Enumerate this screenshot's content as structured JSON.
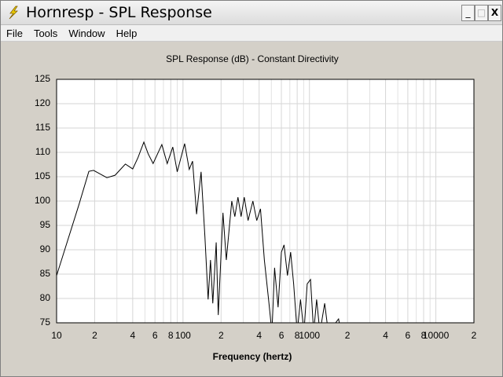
{
  "window": {
    "title": "Hornresp - SPL Response"
  },
  "menu": [
    "File",
    "Tools",
    "Window",
    "Help"
  ],
  "chart_data": {
    "type": "line",
    "title": "SPL Response (dB) - Constant Directivity",
    "xlabel": "Frequency (hertz)",
    "log_x": true,
    "grid": true,
    "color": "#000000",
    "xlim": [
      10,
      20000
    ],
    "ylim": [
      75,
      125
    ],
    "yticks": [
      75,
      80,
      85,
      90,
      95,
      100,
      105,
      110,
      115,
      120,
      125
    ],
    "xticks": [
      10,
      {
        "value": 20,
        "label": "2"
      },
      {
        "value": 40,
        "label": "4"
      },
      {
        "value": 60,
        "label": "6"
      },
      {
        "value": 80,
        "label": "8"
      },
      100,
      {
        "value": 200,
        "label": "2"
      },
      {
        "value": 400,
        "label": "4"
      },
      {
        "value": 600,
        "label": "6"
      },
      {
        "value": 800,
        "label": "8"
      },
      1000,
      {
        "value": 2000,
        "label": "2"
      },
      {
        "value": 4000,
        "label": "4"
      },
      {
        "value": 6000,
        "label": "6"
      },
      {
        "value": 8000,
        "label": "8"
      },
      10000,
      {
        "value": 20000,
        "label": "2"
      }
    ],
    "xminor": [
      30,
      50,
      70,
      90,
      300,
      500,
      700,
      900,
      3000,
      5000,
      7000,
      9000
    ],
    "x": [
      10,
      15,
      18,
      19.6,
      25,
      29,
      35,
      40,
      44,
      49,
      53,
      58,
      68,
      75,
      83,
      90,
      103,
      112,
      119,
      128,
      139,
      149,
      158,
      165,
      172,
      183,
      190,
      207,
      220,
      243,
      257,
      272,
      288,
      305,
      327,
      357,
      383,
      410,
      440,
      475,
      505,
      530,
      565,
      600,
      630,
      670,
      710,
      750,
      800,
      850,
      905,
      960,
      1020,
      1080,
      1140,
      1210,
      1320,
      1410,
      1700,
      1780
    ],
    "values": [
      84.7,
      99.2,
      106.1,
      106.3,
      104.8,
      105.3,
      107.6,
      106.6,
      108.9,
      112.1,
      109.7,
      107.7,
      111.6,
      107.7,
      111.1,
      106,
      111.8,
      106.5,
      108.2,
      97.3,
      106,
      92.7,
      79.8,
      87.9,
      79,
      91.5,
      76.6,
      97.6,
      87.9,
      100,
      96.8,
      100.8,
      96.8,
      100.8,
      96,
      100,
      96,
      98.4,
      87.9,
      79.8,
      73,
      86.3,
      78.2,
      89.5,
      91,
      84.7,
      89.5,
      83,
      73,
      79.8,
      73,
      83,
      83.9,
      73,
      79.8,
      73,
      79,
      73,
      75.8,
      73
    ]
  }
}
